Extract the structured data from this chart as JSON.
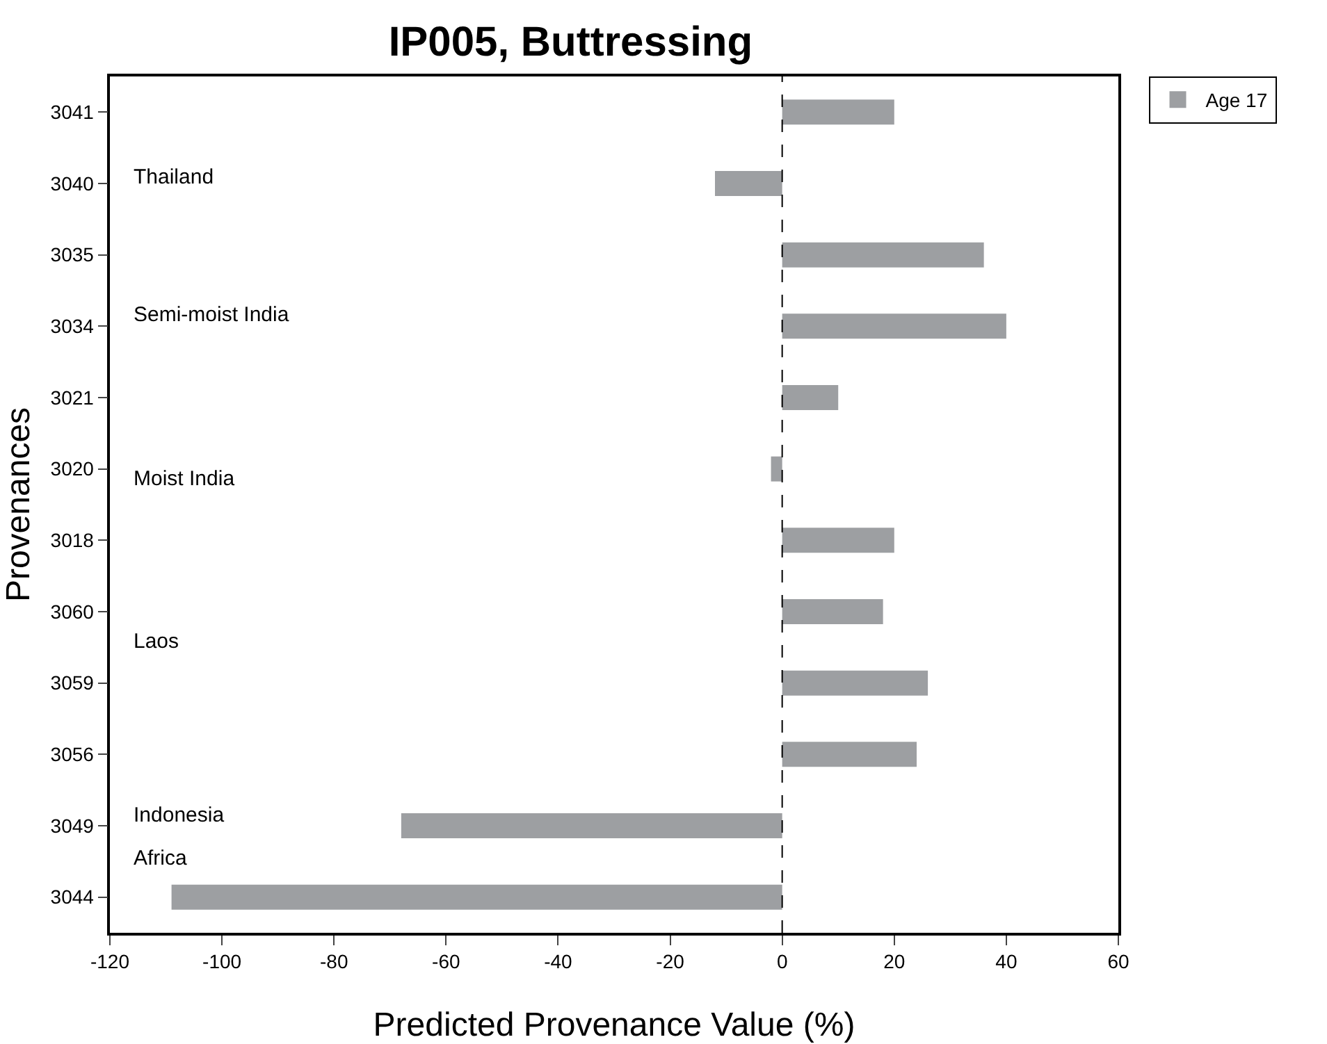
{
  "chart_data": {
    "type": "bar",
    "orientation": "horizontal",
    "title": "IP005, Buttressing",
    "xlabel": "Predicted Provenance Value (%)",
    "ylabel": "Provenances",
    "categories": [
      "3041",
      "3040",
      "3035",
      "3034",
      "3021",
      "3020",
      "3018",
      "3060",
      "3059",
      "3056",
      "3049",
      "3044"
    ],
    "series": [
      {
        "name": "Age 17",
        "color": "#9d9fa2",
        "values": [
          20,
          -12,
          36,
          40,
          10,
          -2,
          20,
          18,
          26,
          24,
          -68,
          -109
        ]
      }
    ],
    "xlim": [
      -120,
      60
    ],
    "xticks": [
      -120,
      -100,
      -80,
      -60,
      -40,
      -20,
      0,
      20,
      40,
      60
    ],
    "ref_lines": [
      {
        "axis": "x",
        "value": 0,
        "line_style": "dashed",
        "color": "#000000"
      }
    ],
    "annotations": [
      "Thailand",
      "Semi-moist India",
      "Moist India",
      "Laos",
      "Indonesia",
      "Africa"
    ],
    "grid": false,
    "legend": "top right"
  }
}
